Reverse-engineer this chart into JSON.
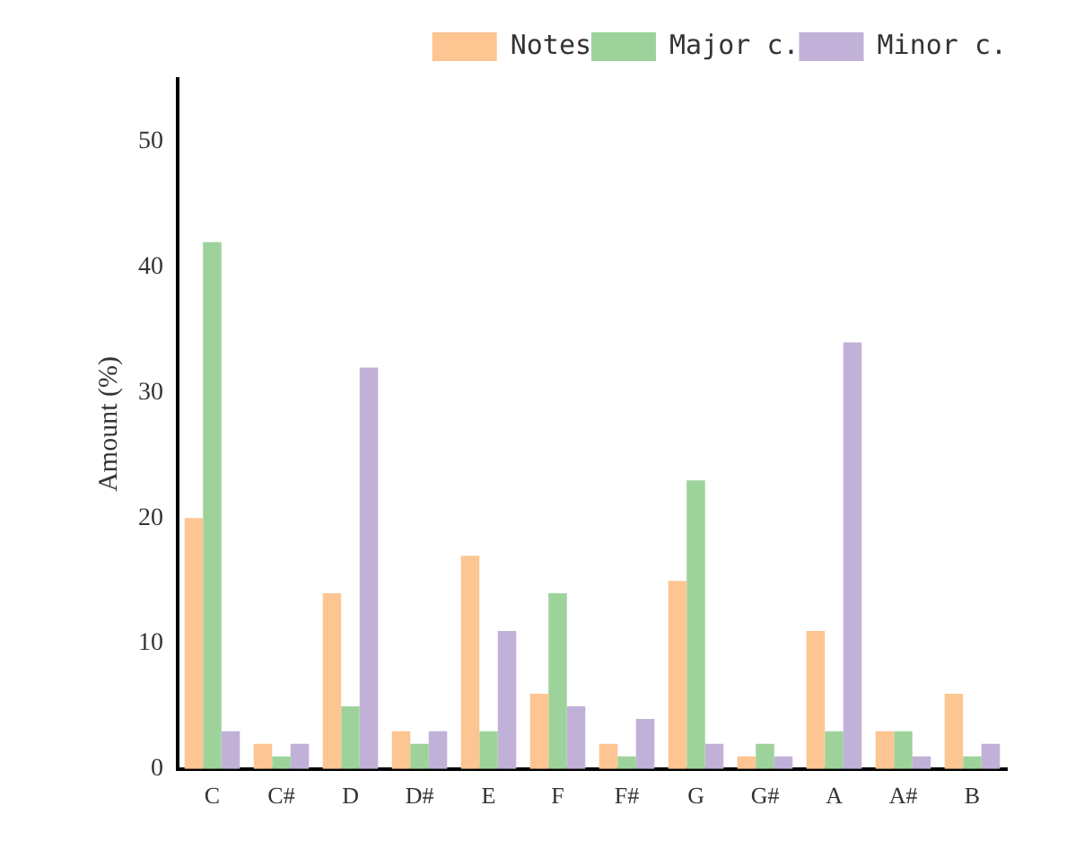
{
  "chart_data": {
    "type": "bar",
    "ylabel": "Amount (%)",
    "categories": [
      "C",
      "C#",
      "D",
      "D#",
      "E",
      "F",
      "F#",
      "G",
      "G#",
      "A",
      "A#",
      "B"
    ],
    "series": [
      {
        "name": "Notes",
        "color": "#fdc591",
        "values": [
          20,
          2,
          14,
          3,
          17,
          6,
          2,
          15,
          1,
          11,
          3,
          6
        ]
      },
      {
        "name": "Major c.",
        "color": "#9dd39b",
        "values": [
          42,
          1,
          5,
          2,
          3,
          14,
          1,
          23,
          2,
          3,
          3,
          1
        ]
      },
      {
        "name": "Minor c.",
        "color": "#c1b1d9",
        "values": [
          3,
          2,
          32,
          3,
          11,
          5,
          4,
          2,
          1,
          34,
          1,
          2
        ]
      }
    ],
    "ylim": [
      0,
      55
    ],
    "yticks": [
      0,
      10,
      20,
      30,
      40,
      50
    ],
    "grid": false,
    "legend": "top right"
  }
}
